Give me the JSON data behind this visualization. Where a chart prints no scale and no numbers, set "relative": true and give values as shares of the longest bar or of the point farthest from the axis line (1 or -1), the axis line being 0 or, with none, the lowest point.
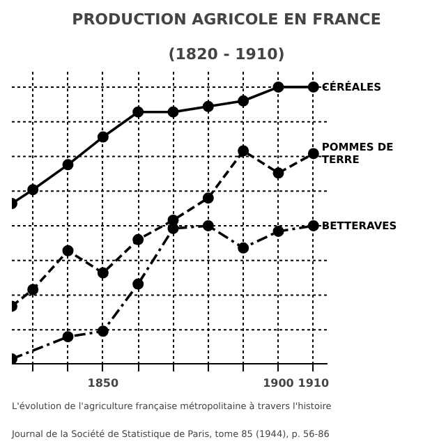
{
  "chart_data": {
    "type": "line",
    "title": "PRODUCTION AGRICOLE EN FRANCE",
    "subtitle": "(1820 - 1910)",
    "relative": true,
    "x": [
      1824,
      1830,
      1840,
      1850,
      1860,
      1870,
      1880,
      1890,
      1900,
      1910
    ],
    "xlim": [
      1824,
      1914
    ],
    "xticks": [
      {
        "value": 1830,
        "label": null
      },
      {
        "value": 1840,
        "label": null
      },
      1850,
      {
        "value": 1860,
        "label": null
      },
      {
        "value": 1870,
        "label": null
      },
      {
        "value": 1880,
        "label": null
      },
      {
        "value": 1890,
        "label": null
      },
      1900,
      1910
    ],
    "tick_labels": "x",
    "grid": true,
    "marker": "circle",
    "legend": false,
    "series": [
      {
        "name": "CÉRÉALES",
        "color": "#000000",
        "line_style": "solid",
        "values": [
          0.58,
          0.63,
          0.72,
          0.82,
          0.91,
          0.91,
          0.93,
          0.95,
          1.0,
          1.0
        ]
      },
      {
        "name": "POMMES DE TERRE",
        "color": "#000000",
        "line_style": "dashed",
        "values": [
          0.21,
          0.27,
          0.41,
          0.33,
          0.45,
          0.52,
          0.6,
          0.77,
          0.69,
          0.76
        ]
      },
      {
        "name": "BETTERAVES",
        "color": "#000000",
        "line_style": "dashdot",
        "x": [
          1824,
          1840,
          1850,
          1860,
          1870,
          1880,
          1890,
          1900,
          1910
        ],
        "values": [
          0.02,
          0.1,
          0.12,
          0.29,
          0.49,
          0.5,
          0.42,
          0.48,
          0.5
        ]
      }
    ],
    "annotations": [
      "L'évolution de l'agriculture française métropolitaine à travers l'histoire",
      "Journal de la Société de Statistique de Paris, tome 85 (1944), p. 56-86"
    ]
  }
}
